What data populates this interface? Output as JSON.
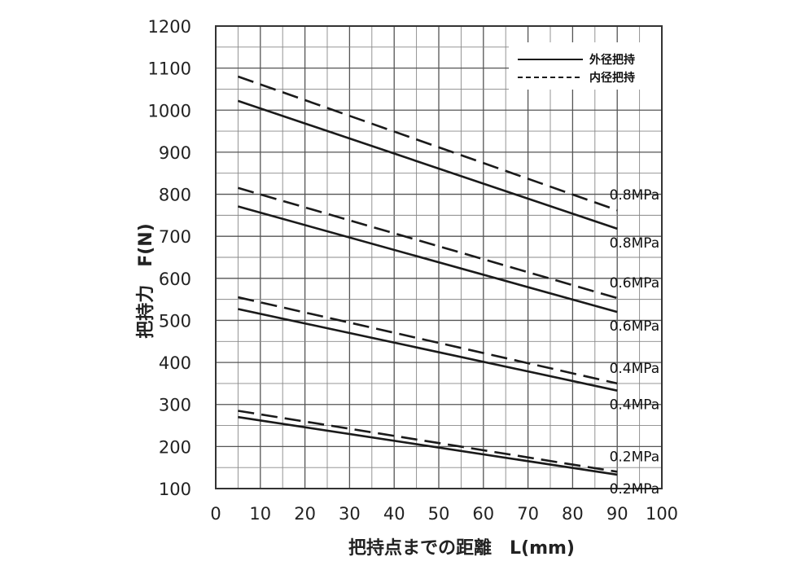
{
  "chart_data": {
    "type": "line",
    "xlabel": "把持点までの距離　L(mm)",
    "ylabel": "把持力　F(N)",
    "xlim": [
      0,
      100
    ],
    "ylim": [
      100,
      1200
    ],
    "xticks": [
      0,
      10,
      20,
      30,
      40,
      50,
      60,
      70,
      80,
      90,
      100
    ],
    "yticks": [
      100,
      200,
      300,
      400,
      500,
      600,
      700,
      800,
      900,
      1000,
      1100,
      1200
    ],
    "grid": true,
    "legend_position": "top-right",
    "legend": [
      {
        "label": "外径把持",
        "style": "solid"
      },
      {
        "label": "内径把持",
        "style": "dashed"
      }
    ],
    "series": [
      {
        "label": "0.8MPa",
        "style": "solid",
        "x": [
          5,
          90
        ],
        "y": [
          1022,
          718
        ]
      },
      {
        "label": "0.8MPa",
        "style": "dashed",
        "x": [
          5,
          90
        ],
        "y": [
          1080,
          762
        ]
      },
      {
        "label": "0.6MPa",
        "style": "solid",
        "x": [
          5,
          90
        ],
        "y": [
          771,
          520
        ]
      },
      {
        "label": "0.6MPa",
        "style": "dashed",
        "x": [
          5,
          90
        ],
        "y": [
          815,
          553
        ]
      },
      {
        "label": "0.4MPa",
        "style": "solid",
        "x": [
          5,
          90
        ],
        "y": [
          527,
          333
        ]
      },
      {
        "label": "0.4MPa",
        "style": "dashed",
        "x": [
          5,
          90
        ],
        "y": [
          555,
          350
        ]
      },
      {
        "label": "0.2MPa",
        "style": "solid",
        "x": [
          5,
          90
        ],
        "y": [
          270,
          133
        ]
      },
      {
        "label": "0.2MPa",
        "style": "dashed",
        "x": [
          5,
          90
        ],
        "y": [
          285,
          140
        ]
      }
    ]
  }
}
